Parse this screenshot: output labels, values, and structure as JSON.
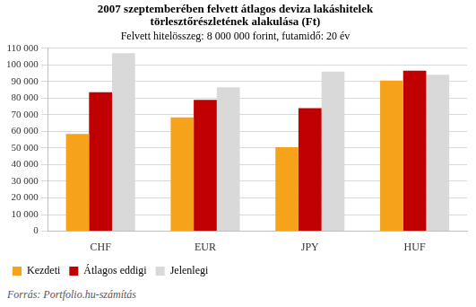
{
  "chart_data": {
    "type": "bar",
    "title": [
      "2007 szeptemberében felvett átlagos deviza lakáshitelek",
      "törlesztőrészletének alakulása (Ft)"
    ],
    "subtitle": "Felvett hitelösszeg: 8 000 000 forint, futamidő: 20 év",
    "source": "Forrás: Portfolio.hu-számítás",
    "categories": [
      "CHF",
      "EUR",
      "JPY",
      "HUF"
    ],
    "series": [
      {
        "name": "Kezdeti",
        "color": "#f7a21b",
        "values": [
          58500,
          68500,
          50500,
          90500
        ]
      },
      {
        "name": "Átlagos eddigi",
        "color": "#c00000",
        "values": [
          83500,
          79000,
          74000,
          96500
        ]
      },
      {
        "name": "Jelenlegi",
        "color": "#d9d9d9",
        "values": [
          107000,
          86500,
          96000,
          94000
        ]
      }
    ],
    "ylim": [
      0,
      110000
    ],
    "yticks": [
      0,
      {
        "value": 10000,
        "label": "10 000"
      },
      {
        "value": 20000,
        "label": "20 000"
      },
      {
        "value": 30000,
        "label": "30 000"
      },
      {
        "value": 40000,
        "label": "40 000"
      },
      {
        "value": 50000,
        "label": "50 000"
      },
      {
        "value": 60000,
        "label": "60 000"
      },
      {
        "value": 70000,
        "label": "70 000"
      },
      {
        "value": 80000,
        "label": "80 000"
      },
      {
        "value": 90000,
        "label": "90 000"
      },
      {
        "value": 100000,
        "label": "100 000"
      },
      {
        "value": 110000,
        "label": "110 000"
      }
    ],
    "grid": true,
    "legend": "bottom"
  }
}
